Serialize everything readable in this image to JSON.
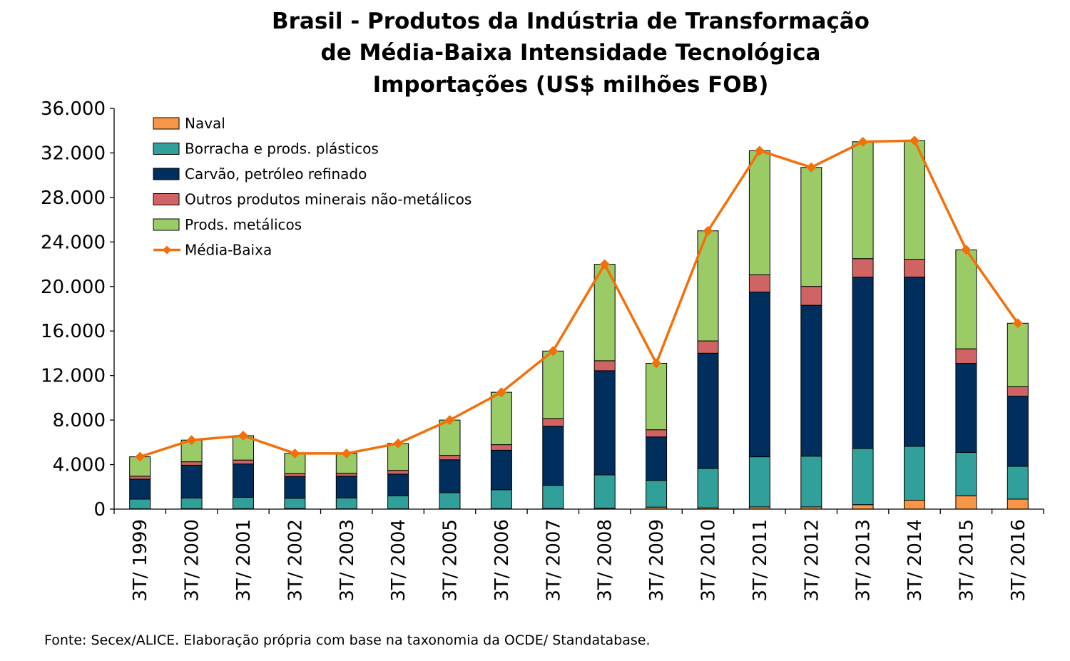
{
  "chart_data": {
    "type": "bar",
    "title_lines": [
      "Brasil - Produtos da Indústria de Transformação",
      "de Média-Baixa Intensidade Tecnológica",
      "Importações (US$ milhões FOB)"
    ],
    "categories": [
      "3T/ 1999",
      "3T/ 2000",
      "3T/ 2001",
      "3T/ 2002",
      "3T/ 2003",
      "3T/ 2004",
      "3T/ 2005",
      "3T/ 2006",
      "3T/ 2007",
      "3T/ 2008",
      "3T/ 2009",
      "3T/ 2010",
      "3T/ 2011",
      "3T/ 2012",
      "3T/ 2013",
      "3T/ 2014",
      "3T/ 2015",
      "3T/ 2016"
    ],
    "stacked": true,
    "ylim": [
      0,
      36000
    ],
    "yticks": [
      0,
      4000,
      8000,
      12000,
      16000,
      20000,
      24000,
      28000,
      32000,
      36000
    ],
    "ytick_labels": [
      "0",
      "4.000",
      "8.000",
      "12.000",
      "16.000",
      "20.000",
      "24.000",
      "28.000",
      "32.000",
      "36.000"
    ],
    "series": [
      {
        "name": "Naval",
        "color": "#F79646",
        "values": [
          30,
          40,
          40,
          50,
          30,
          30,
          30,
          40,
          60,
          80,
          180,
          120,
          200,
          200,
          400,
          800,
          1200,
          900
        ]
      },
      {
        "name": "Borracha e prods. plásticos",
        "color": "#31A09A",
        "values": [
          870,
          960,
          1020,
          930,
          980,
          1170,
          1450,
          1700,
          2080,
          3000,
          2400,
          3540,
          4500,
          4560,
          5050,
          4850,
          3900,
          2950
        ]
      },
      {
        "name": "Carvão, petróleo refinado",
        "color": "#002F5E",
        "values": [
          1800,
          2950,
          3000,
          1950,
          1950,
          1950,
          2950,
          3550,
          5300,
          9350,
          3900,
          10350,
          14800,
          13550,
          15400,
          15200,
          8000,
          6300
        ]
      },
      {
        "name": "Outros produtos minerais não-metálicos",
        "color": "#D06464",
        "values": [
          260,
          300,
          350,
          250,
          250,
          330,
          400,
          500,
          700,
          900,
          650,
          1100,
          1550,
          1700,
          1650,
          1600,
          1300,
          850
        ]
      },
      {
        "name": "Prods. metálicos",
        "color": "#9BCB66",
        "values": [
          1740,
          1950,
          2190,
          1820,
          1790,
          2420,
          3170,
          4710,
          6060,
          8670,
          5970,
          9890,
          11150,
          10690,
          10500,
          10650,
          8900,
          5700
        ]
      }
    ],
    "line": {
      "name": "Média-Baixa",
      "color": "#F36F0A",
      "values": [
        4700,
        6200,
        6600,
        5000,
        5000,
        5900,
        8000,
        10490,
        14200,
        22000,
        13100,
        25000,
        32200,
        30700,
        33000,
        33100,
        23300,
        16700
      ]
    },
    "legend": "top-left inside plot",
    "grid": false
  },
  "source_text": "Fonte: Secex/ALICE. Elaboração própria com base na taxonomia da OCDE/ Standatabase."
}
